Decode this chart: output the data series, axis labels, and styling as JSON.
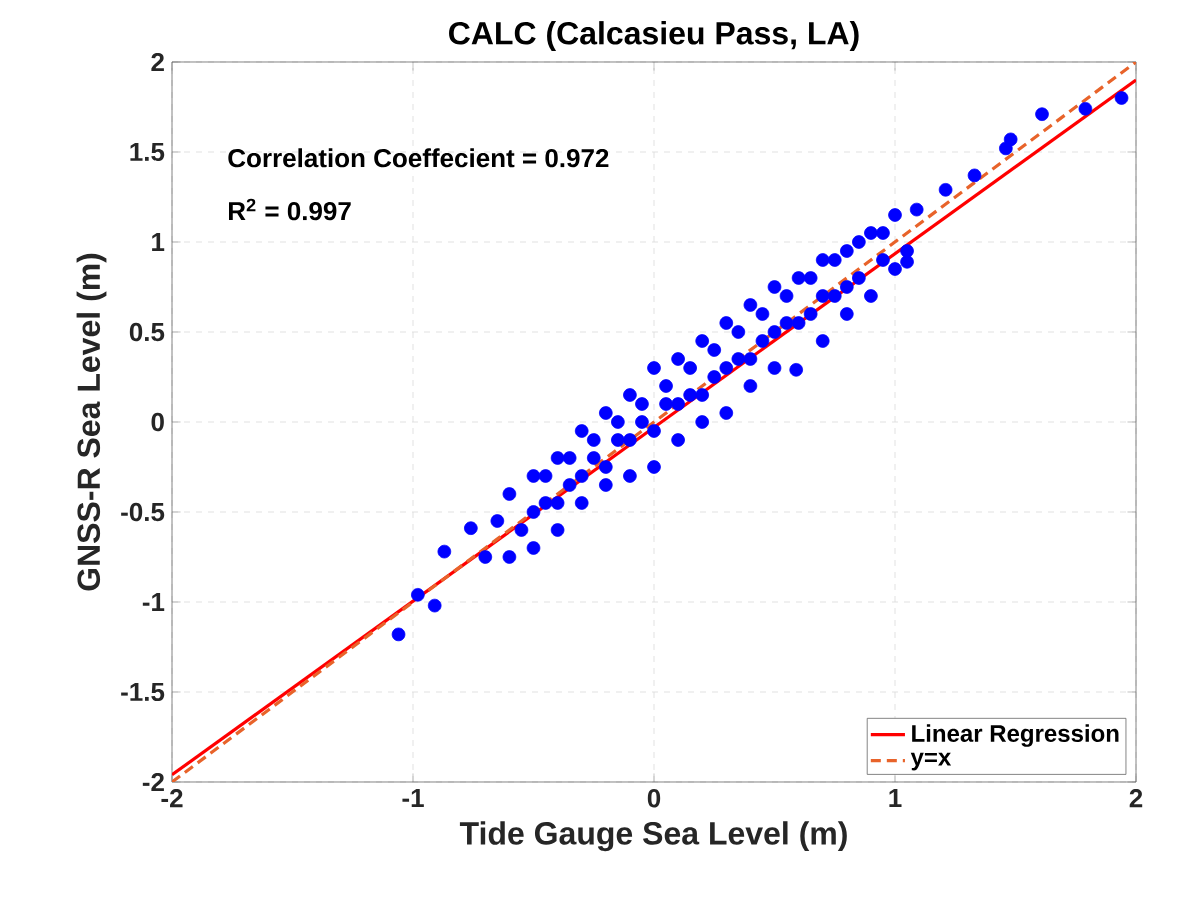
{
  "chart_data": {
    "type": "scatter",
    "title": "CALC (Calcasieu Pass, LA)",
    "xlabel": "Tide Gauge Sea Level (m)",
    "ylabel": "GNSS-R Sea Level (m)",
    "annotations": [
      "Correlation Coeffecient = 0.972",
      "R$^{2}$ = 0.997"
    ],
    "xlim": [
      -2,
      2
    ],
    "ylim": [
      -2,
      2
    ],
    "xticks": [
      -2,
      -1,
      0,
      1,
      2
    ],
    "yticks": [
      -2,
      -1.5,
      -1,
      -0.5,
      0,
      0.5,
      1,
      1.5,
      2
    ],
    "grid": true,
    "legend": "bottom right",
    "series": [
      {
        "color": "#0000ff",
        "marker": "circle",
        "x": [
          -0.5,
          -0.4,
          -0.3,
          -0.2,
          -0.1,
          0.0,
          0.1,
          0.2,
          0.3,
          0.4,
          0.5,
          0.6,
          0.7,
          0.8,
          -0.45,
          -0.35,
          -0.25,
          -0.15,
          -0.05,
          0.05,
          0.15,
          0.25,
          0.35,
          0.45,
          0.55,
          0.65,
          0.75,
          0.85,
          0.95,
          -1.06,
          -0.98,
          -0.91,
          -0.87,
          -0.76,
          -0.7,
          -0.65,
          -0.6,
          -0.6,
          -0.55,
          -0.5,
          -0.5,
          -0.45,
          -0.4,
          -0.4,
          -0.35,
          -0.3,
          -0.3,
          -0.25,
          -0.2,
          -0.2,
          -0.15,
          -0.1,
          -0.1,
          -0.05,
          0,
          0,
          0.05,
          0.1,
          0.1,
          0.15,
          0.2,
          0.2,
          0.25,
          0.3,
          0.3,
          0.35,
          0.4,
          0.4,
          0.45,
          0.5,
          0.5,
          0.55,
          0.59,
          0.6,
          0.65,
          0.7,
          0.7,
          0.75,
          0.8,
          0.8,
          0.85,
          0.9,
          0.9,
          0.95,
          1.0,
          1.0,
          1.05,
          1.05,
          1.09,
          1.21,
          1.33,
          1.46,
          1.48,
          1.61,
          1.79,
          1.94
        ],
        "values": [
          -0.5,
          -0.45,
          -0.3,
          -0.25,
          -0.1,
          -0.05,
          0.1,
          0.15,
          0.3,
          0.35,
          0.5,
          0.55,
          0.7,
          0.75,
          -0.3,
          -0.2,
          -0.1,
          0.0,
          0.1,
          0.2,
          0.3,
          0.4,
          0.5,
          0.6,
          0.7,
          0.8,
          0.9,
          1.0,
          1.05,
          -1.18,
          -0.96,
          -1.02,
          -0.72,
          -0.59,
          -0.75,
          -0.55,
          -0.75,
          -0.4,
          -0.6,
          -0.7,
          -0.3,
          -0.45,
          -0.6,
          -0.2,
          -0.35,
          -0.45,
          -0.05,
          -0.2,
          -0.35,
          0.05,
          -0.1,
          -0.3,
          0.15,
          0.0,
          -0.25,
          0.3,
          0.1,
          -0.1,
          0.35,
          0.15,
          0.0,
          0.45,
          0.25,
          0.05,
          0.55,
          0.35,
          0.2,
          0.65,
          0.45,
          0.3,
          0.75,
          0.55,
          0.29,
          0.8,
          0.6,
          0.45,
          0.9,
          0.7,
          0.6,
          0.95,
          0.8,
          0.7,
          1.05,
          0.9,
          0.85,
          1.15,
          0.95,
          0.89,
          1.18,
          1.29,
          1.37,
          1.52,
          1.57,
          1.71,
          1.74,
          1.8
        ]
      },
      {
        "type": "line",
        "name": "Linear Regression",
        "color": "#ff0000",
        "marker": "none",
        "line_style": "solid",
        "x": [
          -2,
          2
        ],
        "values": [
          -1.96,
          1.9
        ]
      },
      {
        "type": "line",
        "name": "y=x",
        "color": "#e8632a",
        "marker": "none",
        "line_style": "dashed",
        "x": [
          -2,
          2
        ],
        "values": [
          -2,
          2
        ]
      }
    ]
  }
}
